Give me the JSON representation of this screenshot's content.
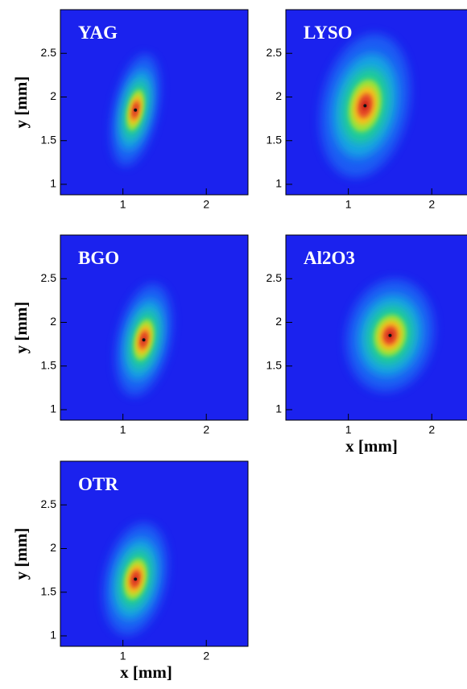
{
  "chart_data": [
    {
      "type": "heatmap",
      "title": "YAG",
      "ylabel": "y [mm]",
      "x": [
        1.15
      ],
      "y": [
        1.85
      ],
      "sigma_x": [
        0.1
      ],
      "sigma_y": [
        0.25
      ],
      "xlim": [
        0.25,
        2.5
      ],
      "ylim": [
        0.88,
        3.0
      ],
      "xticks": [
        1,
        2
      ],
      "yticks": [
        1,
        1.5,
        2,
        2.5
      ]
    },
    {
      "type": "heatmap",
      "title": "LYSO",
      "x": [
        1.2
      ],
      "y": [
        1.9
      ],
      "sigma_x": [
        0.2
      ],
      "sigma_y": [
        0.32
      ],
      "xlim": [
        0.25,
        2.5
      ],
      "ylim": [
        0.88,
        3.0
      ],
      "xticks": [
        1,
        2
      ],
      "yticks": [
        1,
        1.5,
        2,
        2.5
      ]
    },
    {
      "type": "heatmap",
      "title": "BGO",
      "ylabel": "y [mm]",
      "x": [
        1.25
      ],
      "y": [
        1.8
      ],
      "sigma_x": [
        0.12
      ],
      "sigma_y": [
        0.25
      ],
      "xlim": [
        0.25,
        2.5
      ],
      "ylim": [
        0.88,
        3.0
      ],
      "xticks": [
        1,
        2
      ],
      "yticks": [
        1,
        1.5,
        2,
        2.5
      ]
    },
    {
      "type": "heatmap",
      "title": "Al2O3",
      "xlabel": "x [mm]",
      "x": [
        1.5
      ],
      "y": [
        1.85
      ],
      "sigma_x": [
        0.2
      ],
      "sigma_y": [
        0.25
      ],
      "xlim": [
        0.25,
        2.5
      ],
      "ylim": [
        0.88,
        3.0
      ],
      "xticks": [
        1,
        2
      ],
      "yticks": [
        1,
        1.5,
        2,
        2.5
      ]
    },
    {
      "type": "heatmap",
      "title": "OTR",
      "xlabel": "x [mm]",
      "ylabel": "y [mm]",
      "x": [
        1.15
      ],
      "y": [
        1.65
      ],
      "sigma_x": [
        0.14
      ],
      "sigma_y": [
        0.25
      ],
      "xlim": [
        0.25,
        2.5
      ],
      "ylim": [
        0.88,
        3.0
      ],
      "xticks": [
        1,
        2
      ],
      "yticks": [
        1,
        1.5,
        2,
        2.5
      ]
    }
  ]
}
